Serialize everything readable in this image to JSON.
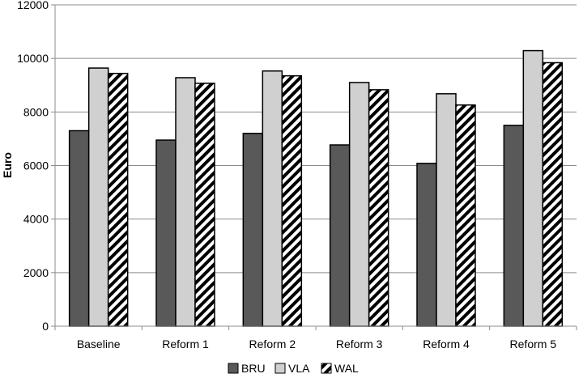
{
  "chart_data": {
    "type": "bar",
    "title": "",
    "xlabel": "",
    "ylabel": "Euro",
    "ylim": [
      0,
      12000
    ],
    "yticks": [
      0,
      2000,
      4000,
      6000,
      8000,
      10000,
      12000
    ],
    "grid": true,
    "legend_position": "bottom",
    "categories": [
      "Baseline",
      "Reform 1",
      "Reform 2",
      "Reform 3",
      "Reform 4",
      "Reform 5"
    ],
    "series": [
      {
        "name": "BRU",
        "color": "#595959",
        "pattern": "solid",
        "values": [
          7300,
          6950,
          7200,
          6770,
          6080,
          7500
        ]
      },
      {
        "name": "VLA",
        "color": "#d0d0d0",
        "pattern": "solid",
        "values": [
          9640,
          9280,
          9530,
          9100,
          8680,
          10290
        ]
      },
      {
        "name": "WAL",
        "color": "#ffffff",
        "pattern": "diagonal-stripes",
        "values": [
          9440,
          9070,
          9350,
          8830,
          8260,
          9840
        ]
      }
    ]
  }
}
